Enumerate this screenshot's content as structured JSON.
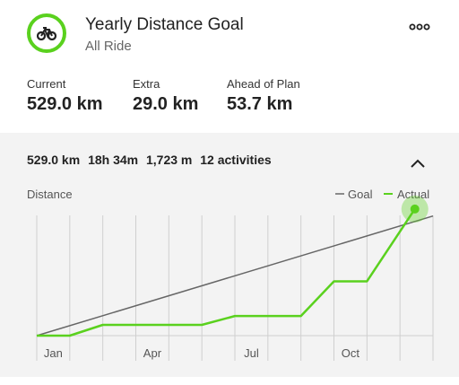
{
  "goal": {
    "title": "Yearly Distance Goal",
    "subtitle": "All Ride",
    "icon": "bike-icon"
  },
  "stats": [
    {
      "label": "Current",
      "value": "529.0 km"
    },
    {
      "label": "Extra",
      "value": "29.0 km"
    },
    {
      "label": "Ahead of Plan",
      "value": "53.7 km"
    }
  ],
  "summary": {
    "distance": "529.0 km",
    "time": "18h 34m",
    "elevation": "1,723 m",
    "activities": "12 activities"
  },
  "colors": {
    "accent": "#5ad11e",
    "goal_line": "#666666",
    "grid": "#cfcfcf"
  },
  "chart_data": {
    "type": "line",
    "title": "",
    "ylabel": "Distance",
    "xlabel": "",
    "tick_labels": [
      "Jan",
      "Apr",
      "Jul",
      "Oct"
    ],
    "legend": [
      "Goal",
      "Actual"
    ],
    "legend_position": "top-right",
    "grid": true,
    "x": [
      "Jan",
      "Feb",
      "Mar",
      "Apr",
      "May",
      "Jun",
      "Jul",
      "Aug",
      "Sep",
      "Oct",
      "Nov",
      "Dec"
    ],
    "ylim": [
      0,
      540
    ],
    "series": [
      {
        "name": "Goal",
        "start": 0,
        "end": 500
      },
      {
        "name": "Actual",
        "values": [
          0,
          0,
          45,
          45,
          45,
          45,
          82,
          82,
          82,
          227,
          227,
          529
        ]
      }
    ]
  }
}
